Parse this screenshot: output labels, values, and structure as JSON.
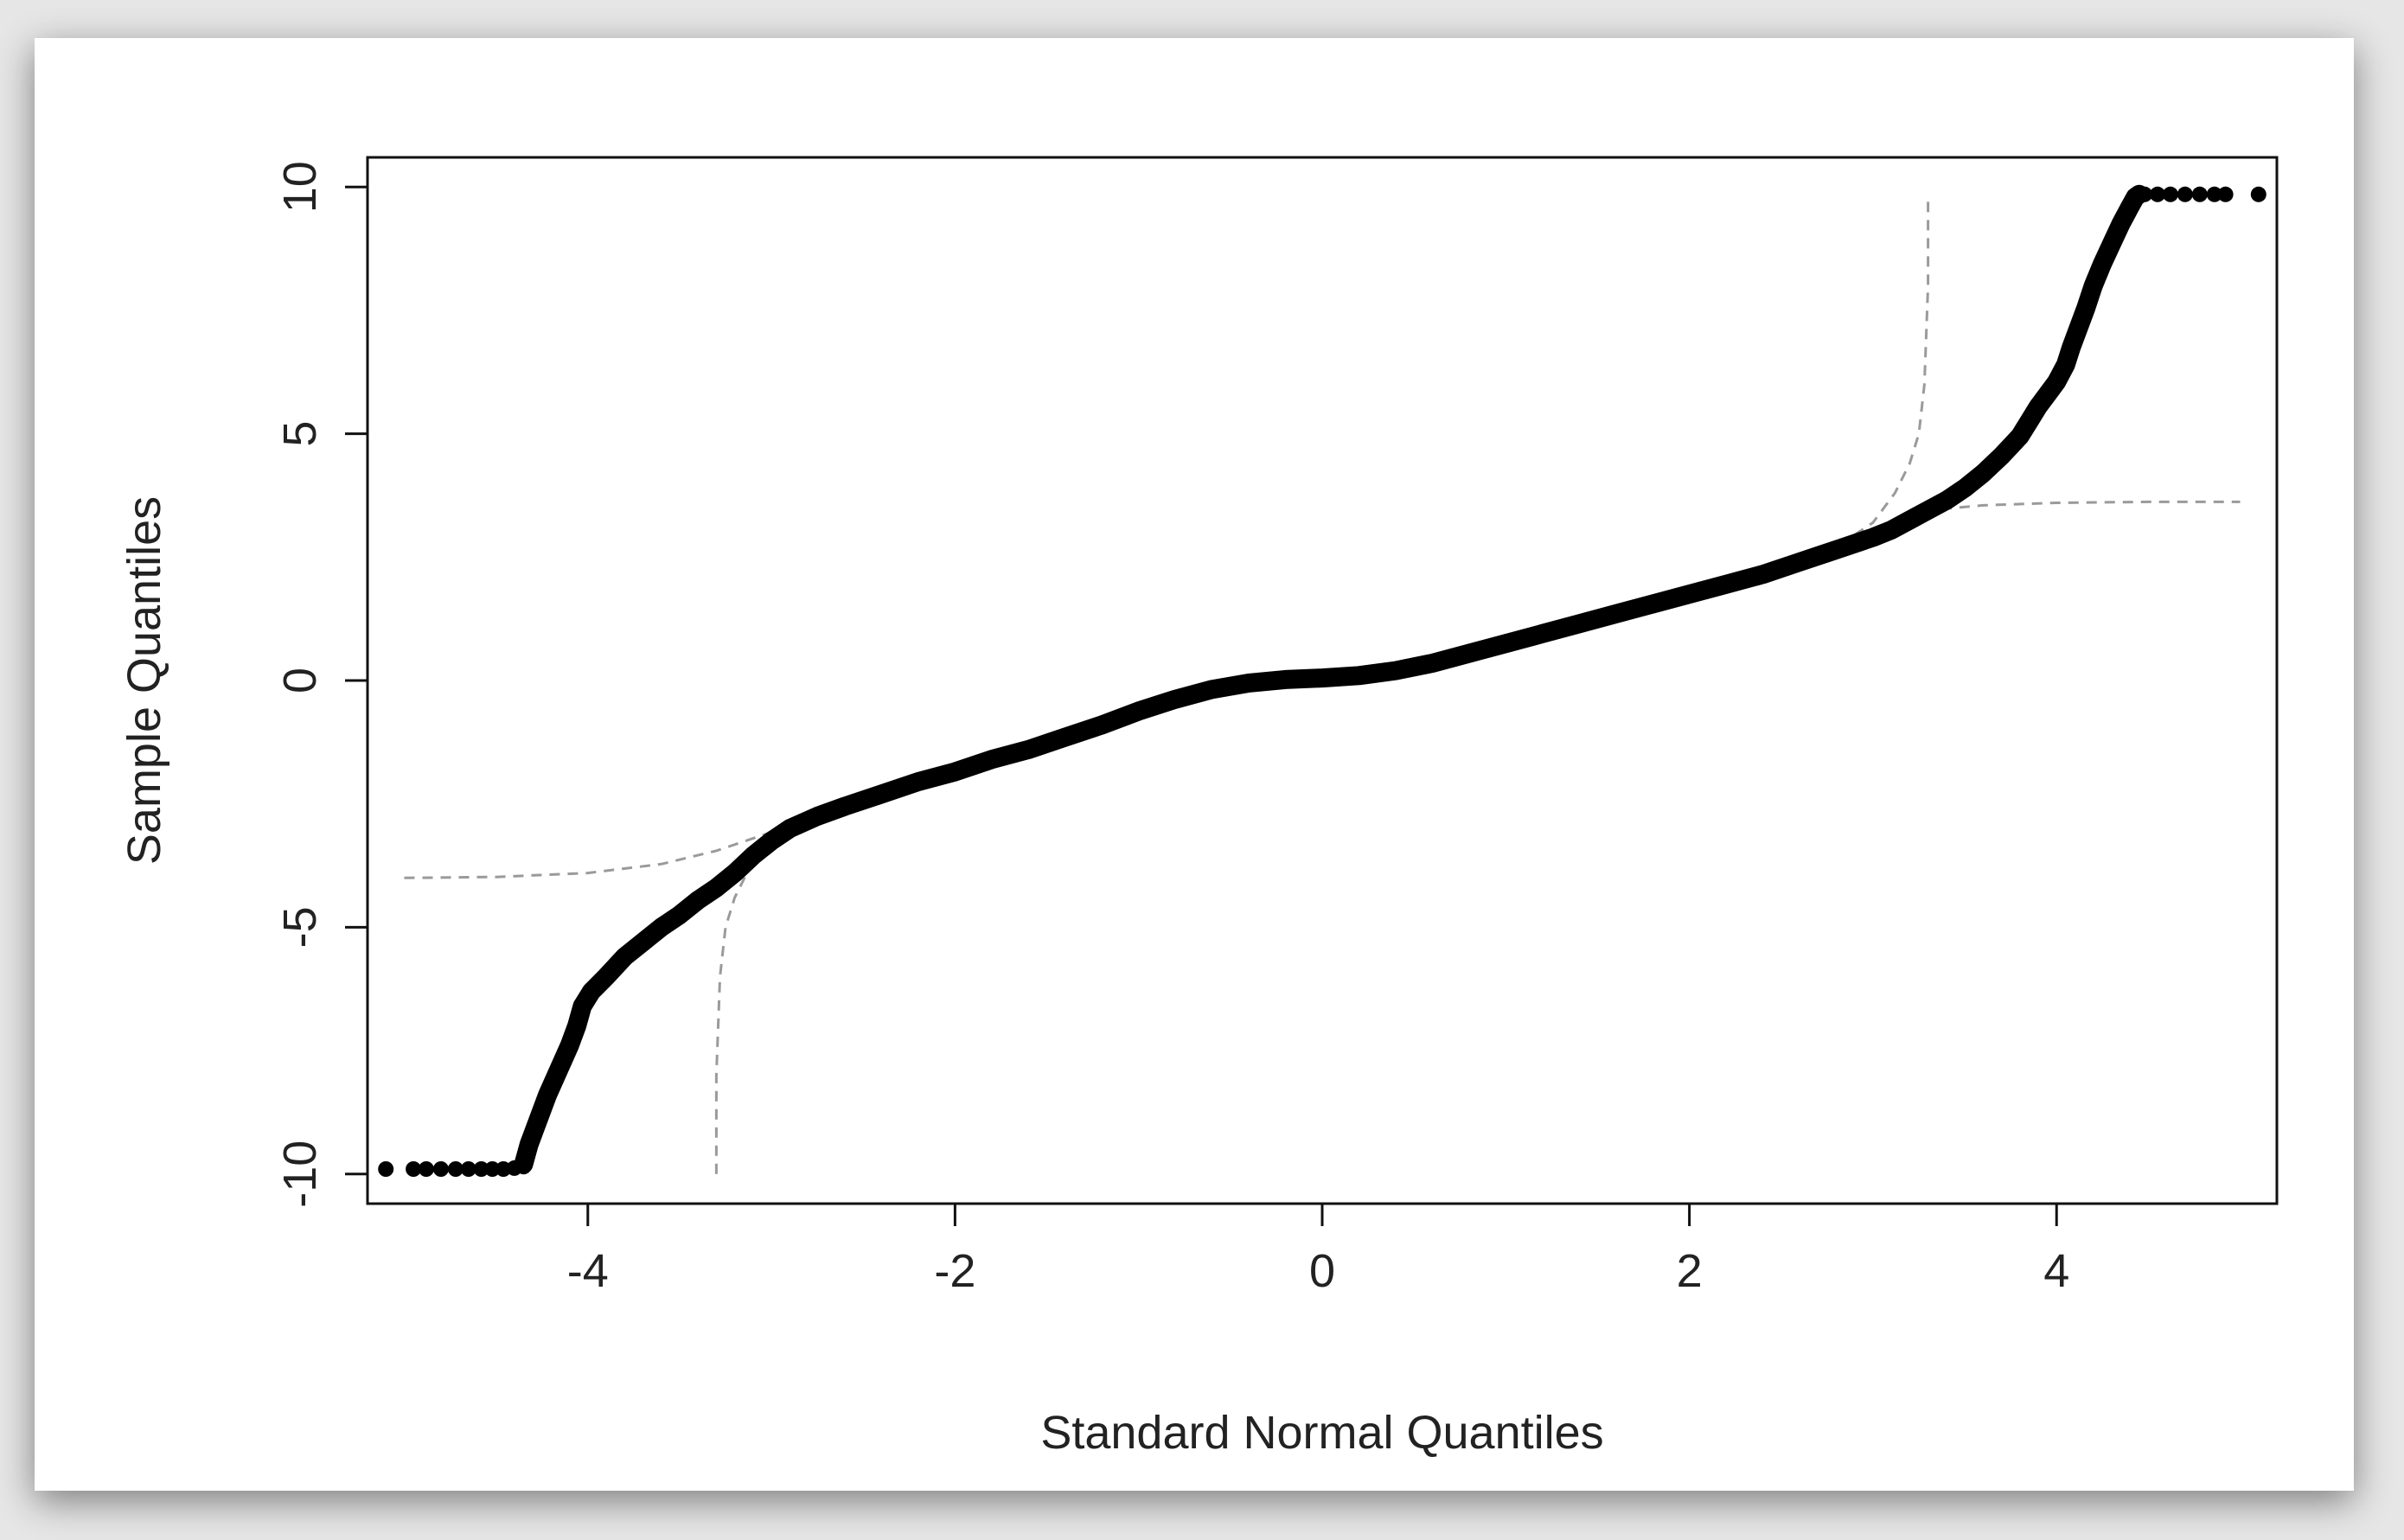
{
  "chart_data": {
    "type": "scatter",
    "title": "",
    "xlabel": "Standard Normal Quantiles",
    "ylabel": "Sample Quantiles",
    "xlim": [
      -5.2,
      5.2
    ],
    "ylim": [
      -10.6,
      10.6
    ],
    "x_ticks": [
      -4,
      -2,
      0,
      2,
      4
    ],
    "x_tick_labels": [
      "-4",
      "-2",
      "0",
      "2",
      "4"
    ],
    "y_ticks": [
      -10,
      -5,
      0,
      5,
      10
    ],
    "y_tick_labels": [
      "-10",
      "-5",
      "0",
      "5",
      "10"
    ],
    "grid": false,
    "legend": "none",
    "marker_color": "#000000",
    "reference_line_color": "#9a9a9a",
    "points": [
      [
        -5.1,
        -9.9
      ],
      [
        -4.95,
        -9.9
      ],
      [
        -4.88,
        -9.9
      ],
      [
        -4.8,
        -9.9
      ],
      [
        -4.72,
        -9.9
      ],
      [
        -4.65,
        -9.9
      ],
      [
        -4.58,
        -9.9
      ],
      [
        -4.52,
        -9.9
      ],
      [
        -4.46,
        -9.9
      ],
      [
        -4.4,
        -9.88
      ],
      [
        -4.35,
        -9.85
      ]
    ],
    "curve_points": [
      [
        -4.35,
        -9.8
      ],
      [
        -4.32,
        -9.4
      ],
      [
        -4.28,
        -9.0
      ],
      [
        -4.22,
        -8.4
      ],
      [
        -4.16,
        -7.9
      ],
      [
        -4.1,
        -7.4
      ],
      [
        -4.06,
        -7.0
      ],
      [
        -4.03,
        -6.6
      ],
      [
        -3.98,
        -6.3
      ],
      [
        -3.9,
        -6.0
      ],
      [
        -3.8,
        -5.6
      ],
      [
        -3.7,
        -5.3
      ],
      [
        -3.6,
        -5.0
      ],
      [
        -3.5,
        -4.75
      ],
      [
        -3.4,
        -4.45
      ],
      [
        -3.3,
        -4.2
      ],
      [
        -3.2,
        -3.9
      ],
      [
        -3.1,
        -3.55
      ],
      [
        -3.0,
        -3.25
      ],
      [
        -2.9,
        -3.0
      ],
      [
        -2.75,
        -2.75
      ],
      [
        -2.6,
        -2.55
      ],
      [
        -2.4,
        -2.3
      ],
      [
        -2.2,
        -2.05
      ],
      [
        -2.0,
        -1.85
      ],
      [
        -1.8,
        -1.6
      ],
      [
        -1.6,
        -1.4
      ],
      [
        -1.4,
        -1.15
      ],
      [
        -1.2,
        -0.9
      ],
      [
        -1.0,
        -0.62
      ],
      [
        -0.8,
        -0.38
      ],
      [
        -0.6,
        -0.18
      ],
      [
        -0.4,
        -0.05
      ],
      [
        -0.2,
        0.02
      ],
      [
        0.0,
        0.05
      ],
      [
        0.2,
        0.1
      ],
      [
        0.4,
        0.2
      ],
      [
        0.6,
        0.35
      ],
      [
        0.8,
        0.55
      ],
      [
        1.0,
        0.75
      ],
      [
        1.2,
        0.95
      ],
      [
        1.4,
        1.15
      ],
      [
        1.6,
        1.35
      ],
      [
        1.8,
        1.55
      ],
      [
        2.0,
        1.75
      ],
      [
        2.2,
        1.95
      ],
      [
        2.4,
        2.15
      ],
      [
        2.6,
        2.4
      ],
      [
        2.8,
        2.65
      ],
      [
        3.0,
        2.9
      ],
      [
        3.1,
        3.05
      ],
      [
        3.2,
        3.25
      ],
      [
        3.3,
        3.45
      ],
      [
        3.4,
        3.65
      ],
      [
        3.5,
        3.9
      ],
      [
        3.6,
        4.2
      ],
      [
        3.7,
        4.55
      ],
      [
        3.8,
        4.95
      ],
      [
        3.85,
        5.25
      ],
      [
        3.9,
        5.55
      ],
      [
        3.95,
        5.8
      ],
      [
        4.0,
        6.05
      ],
      [
        4.05,
        6.4
      ],
      [
        4.08,
        6.75
      ],
      [
        4.12,
        7.15
      ],
      [
        4.16,
        7.55
      ],
      [
        4.2,
        8.0
      ],
      [
        4.25,
        8.45
      ],
      [
        4.3,
        8.85
      ],
      [
        4.35,
        9.25
      ],
      [
        4.4,
        9.6
      ],
      [
        4.43,
        9.8
      ],
      [
        4.45,
        9.85
      ]
    ],
    "upper_points": [
      [
        4.48,
        9.85
      ],
      [
        4.55,
        9.85
      ],
      [
        4.62,
        9.85
      ],
      [
        4.7,
        9.85
      ],
      [
        4.78,
        9.85
      ],
      [
        4.86,
        9.85
      ],
      [
        4.92,
        9.85
      ],
      [
        5.1,
        9.85
      ]
    ],
    "reference_band_upper_left": [
      [
        -5.0,
        -4.0
      ],
      [
        -4.5,
        -3.98
      ],
      [
        -4.0,
        -3.9
      ],
      [
        -3.6,
        -3.72
      ],
      [
        -3.3,
        -3.45
      ],
      [
        -3.1,
        -3.2
      ],
      [
        -2.9,
        -2.95
      ]
    ],
    "reference_band_lower_left": [
      [
        -3.3,
        -10.0
      ],
      [
        -3.3,
        -8.0
      ],
      [
        -3.28,
        -6.0
      ],
      [
        -3.25,
        -5.0
      ],
      [
        -3.2,
        -4.4
      ],
      [
        -3.12,
        -3.8
      ],
      [
        -3.0,
        -3.2
      ],
      [
        -2.9,
        -2.95
      ]
    ],
    "reference_band_upper_right": [
      [
        2.9,
        2.95
      ],
      [
        3.0,
        3.2
      ],
      [
        3.12,
        3.8
      ],
      [
        3.2,
        4.4
      ],
      [
        3.25,
        5.0
      ],
      [
        3.28,
        6.0
      ],
      [
        3.3,
        8.0
      ],
      [
        3.3,
        9.8
      ]
    ],
    "reference_band_lower_right": [
      [
        2.9,
        2.95
      ],
      [
        3.1,
        3.2
      ],
      [
        3.3,
        3.45
      ],
      [
        3.6,
        3.55
      ],
      [
        4.0,
        3.6
      ],
      [
        4.5,
        3.62
      ],
      [
        5.0,
        3.62
      ]
    ]
  }
}
